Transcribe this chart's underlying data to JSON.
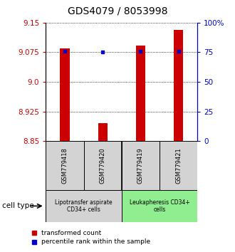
{
  "title": "GDS4079 / 8053998",
  "samples": [
    "GSM779418",
    "GSM779420",
    "GSM779419",
    "GSM779421"
  ],
  "transformed_counts": [
    9.085,
    8.895,
    9.092,
    9.132
  ],
  "percentile_ranks": [
    76,
    75,
    76,
    76
  ],
  "ylim": [
    8.85,
    9.15
  ],
  "yticks_left": [
    8.85,
    8.925,
    9.0,
    9.075,
    9.15
  ],
  "yticks_right": [
    0,
    25,
    50,
    75,
    100
  ],
  "bar_color": "#cc0000",
  "dot_color": "#0000cc",
  "group_labels": [
    "Lipotransfer aspirate\nCD34+ cells",
    "Leukapheresis CD34+\ncells"
  ],
  "group_colors": [
    "#d3d3d3",
    "#90ee90"
  ],
  "group_ranges": [
    [
      0,
      2
    ],
    [
      2,
      4
    ]
  ],
  "cell_type_label": "cell type",
  "legend_red": "transformed count",
  "legend_blue": "percentile rank within the sample",
  "bar_width": 0.25
}
